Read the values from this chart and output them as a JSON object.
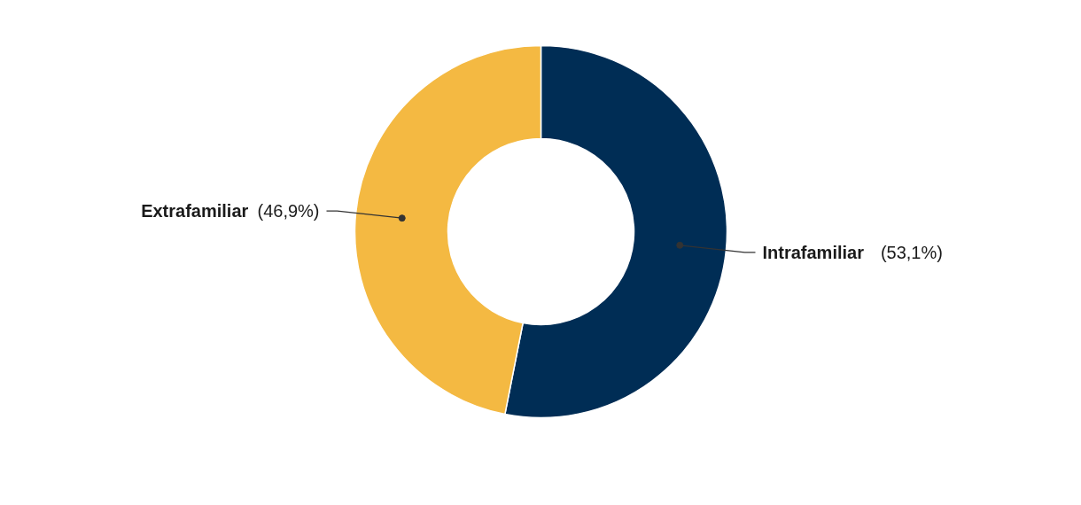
{
  "chart_data": {
    "type": "donut",
    "categories": [
      "Intrafamiliar",
      "Extrafamiliar"
    ],
    "values": [
      53.1,
      46.9
    ],
    "colors": [
      "#002d55",
      "#f4b942"
    ],
    "value_labels": [
      "(53,1%)",
      "(46,9%)"
    ]
  }
}
